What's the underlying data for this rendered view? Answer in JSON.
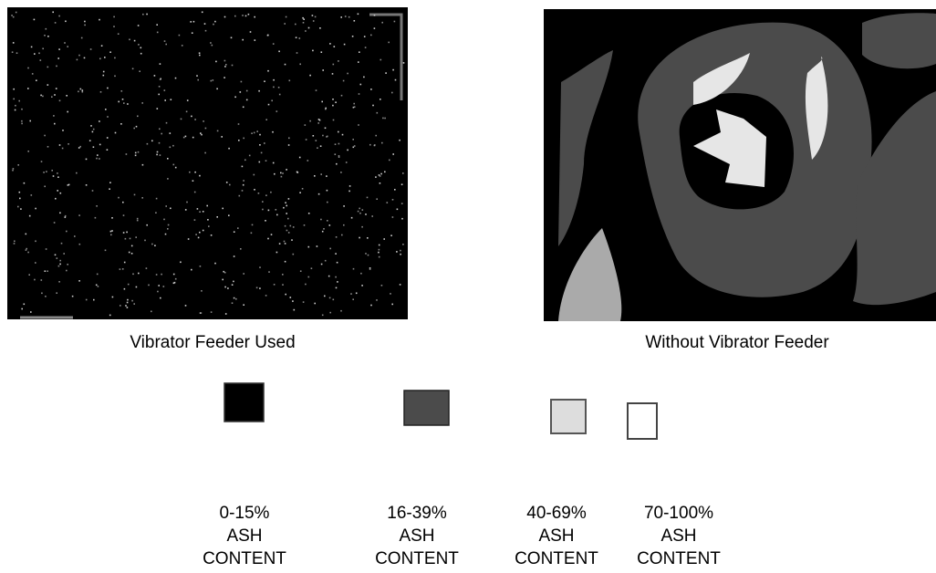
{
  "panels": [
    {
      "caption": "Vibrator Feeder Used"
    },
    {
      "caption": "Without Vibrator Feeder"
    }
  ],
  "legend": [
    {
      "lines": [
        "0-15%",
        "ASH",
        "CONTENT"
      ]
    },
    {
      "lines": [
        "16-39%",
        "ASH",
        "CONTENT"
      ]
    },
    {
      "lines": [
        "40-69%",
        "ASH",
        "CONTENT"
      ]
    },
    {
      "lines": [
        "70-100%",
        "ASH",
        "CONTENT"
      ]
    }
  ]
}
